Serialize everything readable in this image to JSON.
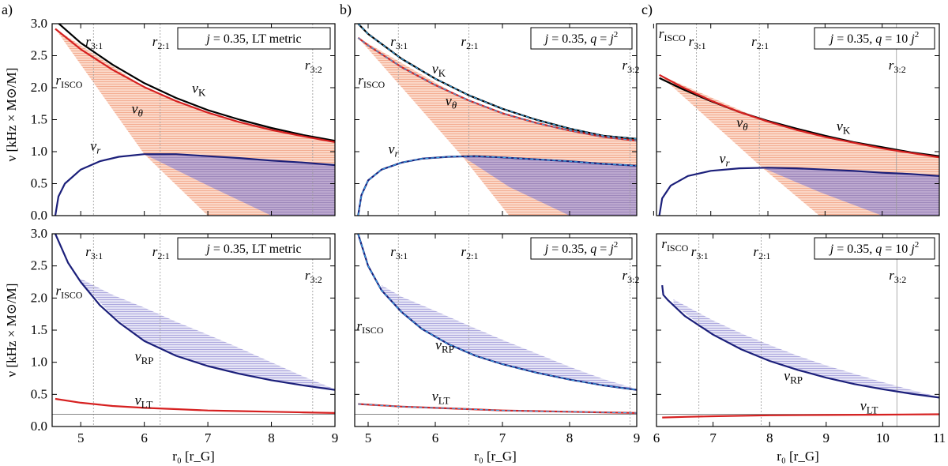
{
  "figure": {
    "y_axis_label": "ν [kHz × M⊙/M]",
    "x_axis_label": "r₀ [r_G]"
  },
  "chart_data": [
    {
      "id": "a-top",
      "type": "line",
      "panel_label": "a)",
      "legend": "j = 0.35, LT metric",
      "x_range": [
        4.55,
        9.0
      ],
      "y_range": [
        0,
        3.0
      ],
      "x_ticks": [
        5,
        6,
        7,
        8,
        9
      ],
      "y_ticks": [
        0.0,
        0.5,
        1.0,
        1.5,
        2.0,
        2.5,
        3.0
      ],
      "r_isco": 4.6,
      "resonances": [
        {
          "label": "r3:1",
          "x": 5.2
        },
        {
          "label": "r2:1",
          "x": 6.25
        },
        {
          "label": "r3:2",
          "x": 8.65
        }
      ],
      "series": [
        {
          "name": "νK",
          "x": [
            4.6,
            5.0,
            5.5,
            6.0,
            6.5,
            7.0,
            7.5,
            8.0,
            8.5,
            9.0
          ],
          "y": [
            3.05,
            2.7,
            2.36,
            2.07,
            1.84,
            1.65,
            1.5,
            1.37,
            1.26,
            1.17
          ]
        },
        {
          "name": "νθ",
          "x": [
            4.6,
            5.0,
            5.5,
            6.0,
            6.5,
            7.0,
            7.5,
            8.0,
            8.5,
            9.0
          ],
          "y": [
            2.92,
            2.6,
            2.28,
            2.01,
            1.79,
            1.61,
            1.46,
            1.34,
            1.24,
            1.15
          ]
        },
        {
          "name": "νr",
          "x": [
            4.6,
            4.65,
            4.75,
            5.0,
            5.3,
            5.6,
            6.0,
            6.5,
            7.0,
            7.5,
            8.0,
            8.5,
            9.0
          ],
          "y": [
            0.0,
            0.3,
            0.5,
            0.72,
            0.85,
            0.92,
            0.96,
            0.96,
            0.93,
            0.9,
            0.86,
            0.83,
            0.79
          ]
        }
      ],
      "shaded_regions": [
        {
          "name": "upper band",
          "color": "#f4b39c",
          "x": [
            4.6,
            6.0,
            7.0,
            8.0,
            9.0
          ],
          "y_top": [
            2.92,
            2.01,
            1.61,
            1.34,
            1.15
          ],
          "y_bottom": [
            2.92,
            0.96,
            0.0,
            0.0,
            0.0
          ]
        },
        {
          "name": "lower band",
          "color": "#9e8fc4",
          "x": [
            6.0,
            7.0,
            8.0,
            9.0
          ],
          "y_top": [
            0.96,
            0.93,
            0.86,
            0.79
          ],
          "y_bottom": [
            0.96,
            0.47,
            0.0,
            0.0
          ]
        }
      ],
      "annotations": [
        {
          "text": "νK",
          "x": 6.75,
          "y": 1.92
        },
        {
          "text": "νθ",
          "x": 5.8,
          "y": 1.6
        },
        {
          "text": "νr",
          "x": 5.15,
          "y": 1.02
        },
        {
          "text": "rISCO",
          "x": 4.68,
          "y": 2.05
        }
      ]
    },
    {
      "id": "b-top",
      "type": "line",
      "panel_label": "b)",
      "legend": "j = 0.35, q = j²",
      "x_range": [
        4.8,
        9.0
      ],
      "y_range": [
        0,
        3.0
      ],
      "x_ticks": [
        5,
        6,
        7,
        8,
        9
      ],
      "y_ticks": [
        0.0,
        0.5,
        1.0,
        1.5,
        2.0,
        2.5,
        3.0
      ],
      "r_isco": 4.85,
      "resonances": [
        {
          "label": "r3:1",
          "x": 5.45
        },
        {
          "label": "r2:1",
          "x": 6.5
        },
        {
          "label": "r3:2",
          "x": 8.9
        }
      ],
      "series": [
        {
          "name": "νK",
          "x": [
            4.85,
            5.0,
            5.5,
            6.0,
            6.5,
            7.0,
            7.5,
            8.0,
            8.5,
            9.0
          ],
          "y": [
            3.0,
            2.84,
            2.45,
            2.14,
            1.88,
            1.67,
            1.5,
            1.36,
            1.25,
            1.2
          ]
        },
        {
          "name": "νθ",
          "x": [
            4.85,
            5.0,
            5.5,
            6.0,
            6.5,
            7.0,
            7.5,
            8.0,
            8.5,
            9.0
          ],
          "y": [
            2.78,
            2.66,
            2.32,
            2.04,
            1.8,
            1.6,
            1.45,
            1.33,
            1.23,
            1.17
          ]
        },
        {
          "name": "νr",
          "x": [
            4.85,
            4.9,
            5.0,
            5.2,
            5.5,
            5.8,
            6.2,
            6.6,
            7.0,
            7.5,
            8.0,
            8.5,
            9.0
          ],
          "y": [
            0.0,
            0.32,
            0.55,
            0.72,
            0.83,
            0.89,
            0.92,
            0.93,
            0.91,
            0.88,
            0.85,
            0.81,
            0.78
          ]
        }
      ],
      "shaded_regions": [
        {
          "name": "upper band",
          "color": "#f4b39c",
          "x": [
            4.85,
            6.4,
            7.1,
            8.0,
            9.0
          ],
          "y_top": [
            2.78,
            1.84,
            1.58,
            1.33,
            1.17
          ],
          "y_bottom": [
            2.78,
            0.93,
            0.0,
            0.0,
            0.0
          ]
        },
        {
          "name": "lower band",
          "color": "#9e8fc4",
          "x": [
            6.4,
            7.1,
            8.0,
            9.0
          ],
          "y_top": [
            0.93,
            0.91,
            0.85,
            0.78
          ],
          "y_bottom": [
            0.93,
            0.45,
            0.0,
            0.0
          ]
        }
      ],
      "annotations": [
        {
          "text": "νK",
          "x": 5.95,
          "y": 2.22
        },
        {
          "text": "νθ",
          "x": 6.15,
          "y": 1.72
        },
        {
          "text": "νr",
          "x": 5.3,
          "y": 0.97
        },
        {
          "text": "rISCO",
          "x": 4.92,
          "y": 2.05
        }
      ]
    },
    {
      "id": "c-top",
      "type": "line",
      "panel_label": "c)",
      "legend": "j = 0.35, q = 10 j²",
      "x_range": [
        6.05,
        11.0
      ],
      "y_range": [
        0,
        3.0
      ],
      "x_ticks": [
        6,
        7,
        8,
        9,
        10,
        11
      ],
      "y_ticks": [
        0.0,
        0.5,
        1.0,
        1.5,
        2.0,
        2.5,
        3.0
      ],
      "r_isco": 6.1,
      "resonances": [
        {
          "label": "r3:1",
          "x": 6.75
        },
        {
          "label": "r2:1",
          "x": 7.85
        },
        {
          "label": "r3:2",
          "x": 10.25
        }
      ],
      "series": [
        {
          "name": "νK",
          "x": [
            6.1,
            6.5,
            7.0,
            7.5,
            8.0,
            8.5,
            9.0,
            9.5,
            10.0,
            10.5,
            11.0
          ],
          "y": [
            2.15,
            1.98,
            1.79,
            1.62,
            1.48,
            1.36,
            1.25,
            1.15,
            1.07,
            0.99,
            0.93
          ]
        },
        {
          "name": "νθ",
          "x": [
            6.1,
            6.5,
            7.0,
            7.5,
            8.0,
            8.5,
            9.0,
            9.5,
            10.0,
            10.5,
            11.0
          ],
          "y": [
            2.2,
            2.01,
            1.8,
            1.62,
            1.47,
            1.34,
            1.23,
            1.14,
            1.05,
            0.98,
            0.91
          ]
        },
        {
          "name": "νr",
          "x": [
            6.1,
            6.15,
            6.3,
            6.6,
            7.0,
            7.5,
            8.0,
            8.5,
            9.0,
            9.5,
            10.0,
            10.5,
            11.0
          ],
          "y": [
            0.0,
            0.27,
            0.47,
            0.62,
            0.7,
            0.74,
            0.75,
            0.74,
            0.72,
            0.7,
            0.67,
            0.65,
            0.62
          ]
        }
      ],
      "shaded_regions": [
        {
          "name": "upper band",
          "color": "#f4b39c",
          "x": [
            6.1,
            7.9,
            8.9,
            10.0,
            11.0
          ],
          "y_top": [
            2.2,
            1.5,
            1.25,
            1.05,
            0.91
          ],
          "y_bottom": [
            2.2,
            0.75,
            0.0,
            0.0,
            0.0
          ]
        },
        {
          "name": "lower band",
          "color": "#9e8fc4",
          "x": [
            7.9,
            8.9,
            10.0,
            11.0
          ],
          "y_top": [
            0.75,
            0.72,
            0.67,
            0.62
          ],
          "y_bottom": [
            0.75,
            0.37,
            0.0,
            0.0
          ]
        }
      ],
      "annotations": [
        {
          "text": "νK",
          "x": 9.2,
          "y": 1.33
        },
        {
          "text": "νθ",
          "x": 7.45,
          "y": 1.38
        },
        {
          "text": "νr",
          "x": 7.15,
          "y": 0.82
        },
        {
          "text": "rISCO",
          "x": 6.2,
          "y": 2.78
        }
      ]
    },
    {
      "id": "a-bottom",
      "type": "line",
      "panel_label": "",
      "legend": "j = 0.35, LT metric",
      "x_range": [
        4.55,
        9.0
      ],
      "y_range": [
        0,
        3.0
      ],
      "x_ticks": [
        5,
        6,
        7,
        8,
        9
      ],
      "y_ticks": [
        0.0,
        0.5,
        1.0,
        1.5,
        2.0,
        2.5,
        3.0
      ],
      "reference_line": 0.19,
      "resonances": [
        {
          "label": "r3:1",
          "x": 5.2
        },
        {
          "label": "r2:1",
          "x": 6.25
        },
        {
          "label": "r3:2",
          "x": 8.65
        }
      ],
      "series": [
        {
          "name": "νRP",
          "x": [
            4.6,
            4.8,
            5.0,
            5.3,
            5.6,
            6.0,
            6.5,
            7.0,
            7.5,
            8.0,
            8.5,
            9.0
          ],
          "y": [
            3.0,
            2.55,
            2.25,
            1.89,
            1.62,
            1.33,
            1.1,
            0.94,
            0.82,
            0.72,
            0.64,
            0.57
          ]
        },
        {
          "name": "νLT",
          "x": [
            4.6,
            5.0,
            5.5,
            6.0,
            6.5,
            7.0,
            7.5,
            8.0,
            8.5,
            9.0
          ],
          "y": [
            0.43,
            0.37,
            0.32,
            0.29,
            0.27,
            0.25,
            0.24,
            0.23,
            0.22,
            0.21
          ]
        }
      ],
      "shaded_regions": [
        {
          "name": "band",
          "color": "#9e97d4",
          "x": [
            5.0,
            5.5,
            6.0,
            6.5,
            7.0,
            7.5,
            8.0,
            8.5,
            9.0
          ],
          "y_top": [
            2.3,
            2.05,
            1.85,
            1.63,
            1.43,
            1.22,
            1.0,
            0.78,
            0.58
          ],
          "y_bottom": [
            2.25,
            1.73,
            1.33,
            1.1,
            0.94,
            0.82,
            0.72,
            0.64,
            0.57
          ]
        }
      ],
      "annotations": [
        {
          "text": "νRP",
          "x": 5.85,
          "y": 1.02
        },
        {
          "text": "νLT",
          "x": 5.85,
          "y": 0.34
        },
        {
          "text": "rISCO",
          "x": 4.68,
          "y": 2.05
        }
      ]
    },
    {
      "id": "b-bottom",
      "type": "line",
      "panel_label": "",
      "legend": "j = 0.35, q = j²",
      "x_range": [
        4.8,
        9.0
      ],
      "y_range": [
        0,
        3.0
      ],
      "x_ticks": [
        5,
        6,
        7,
        8,
        9
      ],
      "y_ticks": [
        0.0,
        0.5,
        1.0,
        1.5,
        2.0,
        2.5,
        3.0
      ],
      "reference_line": 0.19,
      "resonances": [
        {
          "label": "r3:1",
          "x": 5.45
        },
        {
          "label": "r2:1",
          "x": 6.5
        },
        {
          "label": "r3:2",
          "x": 8.9
        }
      ],
      "series": [
        {
          "name": "νRP",
          "x": [
            4.85,
            5.0,
            5.2,
            5.5,
            5.8,
            6.2,
            6.6,
            7.0,
            7.5,
            8.0,
            8.5,
            9.0
          ],
          "y": [
            3.0,
            2.5,
            2.12,
            1.78,
            1.52,
            1.28,
            1.1,
            0.97,
            0.84,
            0.73,
            0.64,
            0.57
          ]
        },
        {
          "name": "νLT",
          "x": [
            4.85,
            5.5,
            6.0,
            6.5,
            7.0,
            7.5,
            8.0,
            8.5,
            9.0
          ],
          "y": [
            0.35,
            0.31,
            0.29,
            0.27,
            0.25,
            0.24,
            0.23,
            0.22,
            0.21
          ]
        }
      ],
      "shaded_regions": [
        {
          "name": "band",
          "color": "#9e97d4",
          "x": [
            5.2,
            5.5,
            6.0,
            6.5,
            7.0,
            7.5,
            8.0,
            8.5,
            9.0
          ],
          "y_top": [
            2.2,
            2.02,
            1.8,
            1.57,
            1.35,
            1.14,
            0.93,
            0.74,
            0.58
          ],
          "y_bottom": [
            2.12,
            1.78,
            1.38,
            1.14,
            0.97,
            0.84,
            0.73,
            0.64,
            0.57
          ]
        }
      ],
      "annotations": [
        {
          "text": "νRP",
          "x": 6.0,
          "y": 1.2
        },
        {
          "text": "νLT",
          "x": 5.95,
          "y": 0.4
        },
        {
          "text": "rISCO",
          "x": 4.9,
          "y": 1.5
        }
      ]
    },
    {
      "id": "c-bottom",
      "type": "line",
      "panel_label": "",
      "legend": "j = 0.35, q = 10 j²",
      "x_range": [
        6.0,
        11.0
      ],
      "y_range": [
        0,
        3.0
      ],
      "x_ticks": [
        6,
        7,
        8,
        9,
        10,
        11
      ],
      "y_ticks": [
        0.0,
        0.5,
        1.0,
        1.5,
        2.0,
        2.5,
        3.0
      ],
      "reference_line": 0.19,
      "resonances": [
        {
          "label": "r3:1",
          "x": 6.75
        },
        {
          "label": "r2:1",
          "x": 7.85
        },
        {
          "label": "r3:2",
          "x": 10.25
        }
      ],
      "series": [
        {
          "name": "νRP",
          "x": [
            6.1,
            6.12,
            6.2,
            6.5,
            7.0,
            7.5,
            8.0,
            8.5,
            9.0,
            9.5,
            10.0,
            10.5,
            11.0
          ],
          "y": [
            2.2,
            2.05,
            1.97,
            1.72,
            1.43,
            1.2,
            1.02,
            0.88,
            0.76,
            0.66,
            0.58,
            0.51,
            0.45
          ]
        },
        {
          "name": "νLT",
          "x": [
            6.1,
            6.5,
            7.0,
            8.0,
            9.0,
            10.0,
            11.0
          ],
          "y": [
            0.14,
            0.15,
            0.16,
            0.175,
            0.18,
            0.185,
            0.19
          ]
        }
      ],
      "shaded_regions": [
        {
          "name": "band",
          "color": "#9e97d4",
          "x": [
            6.3,
            7.0,
            7.5,
            8.0,
            8.5,
            9.0,
            9.5,
            10.0,
            10.5,
            11.0
          ],
          "y_top": [
            1.98,
            1.65,
            1.45,
            1.27,
            1.1,
            0.95,
            0.82,
            0.69,
            0.57,
            0.46
          ],
          "y_bottom": [
            1.9,
            1.43,
            1.2,
            1.02,
            0.88,
            0.76,
            0.66,
            0.58,
            0.51,
            0.45
          ]
        }
      ],
      "annotations": [
        {
          "text": "νRP",
          "x": 8.25,
          "y": 0.72
        },
        {
          "text": "νLT",
          "x": 9.6,
          "y": 0.25
        },
        {
          "text": "rISCO",
          "x": 6.2,
          "y": 2.78
        }
      ]
    }
  ]
}
